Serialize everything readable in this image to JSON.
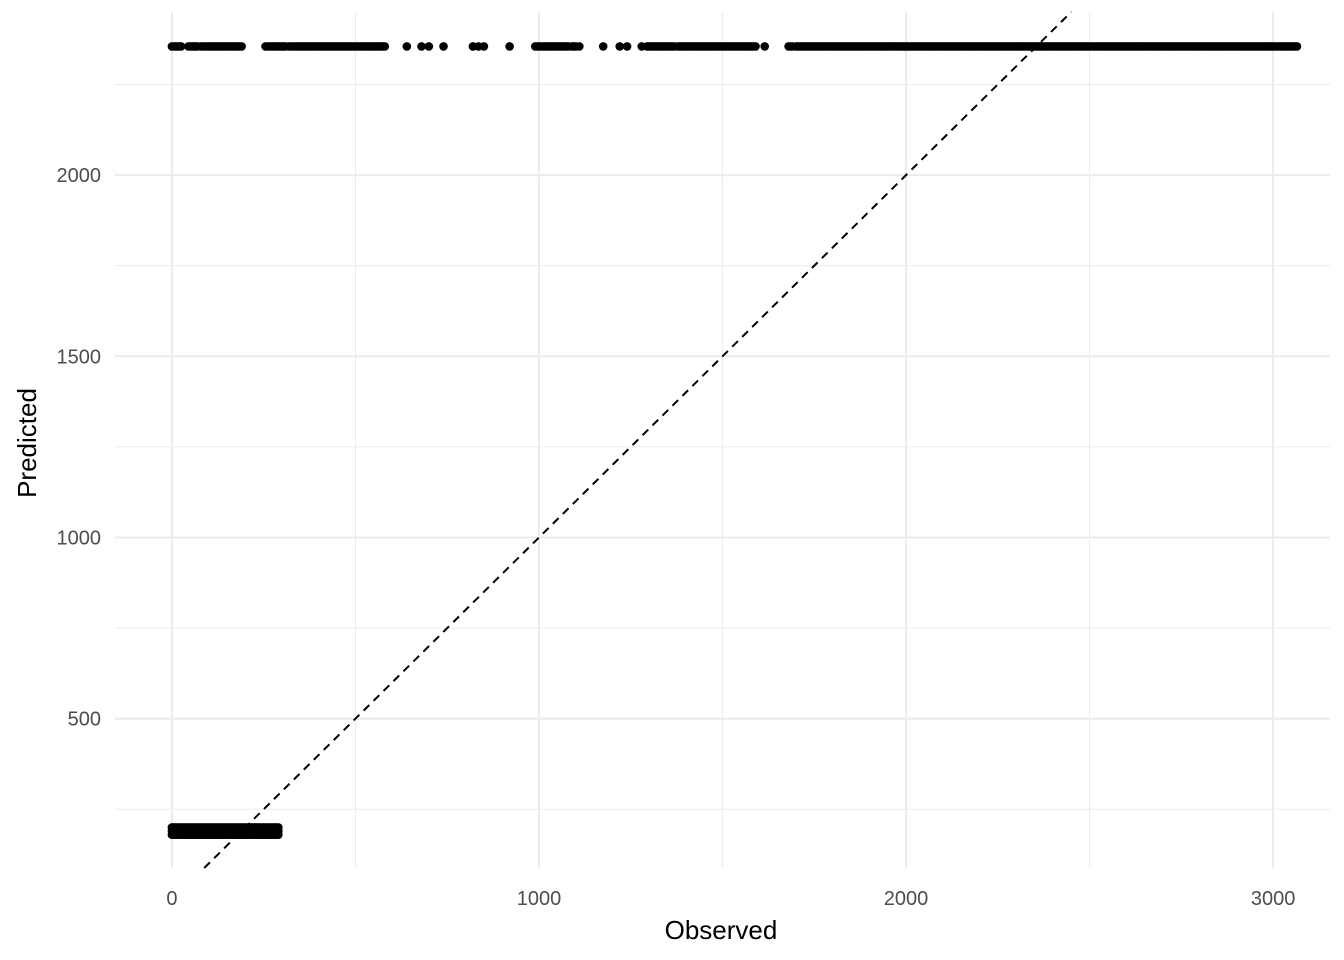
{
  "chart_data": {
    "type": "scatter",
    "title": "",
    "xlabel": "Observed",
    "ylabel": "Predicted",
    "xlim": [
      -155,
      3155
    ],
    "ylim": [
      88,
      2450
    ],
    "x_ticks": [
      0,
      1000,
      2000,
      3000
    ],
    "x_tick_labels": [
      "0",
      "1000",
      "2000",
      "3000"
    ],
    "x_minor_ticks": [
      500,
      1500,
      2500
    ],
    "y_ticks": [
      500,
      1000,
      1500,
      2000
    ],
    "y_tick_labels": [
      "500",
      "1000",
      "1500",
      "2000"
    ],
    "y_minor_ticks": [
      250,
      750,
      1250,
      1750,
      2250
    ],
    "grid": true,
    "reference_line": {
      "style": "dashed",
      "slope": 1,
      "intercept": 0
    },
    "series": [
      {
        "group": "low",
        "predicted": [
          180,
          190,
          200
        ],
        "observed_range": [
          0,
          295
        ],
        "x": [
          0,
          5,
          10,
          15,
          20,
          25,
          30,
          35,
          40,
          45,
          50,
          55,
          60,
          65,
          70,
          75,
          80,
          85,
          90,
          95,
          100,
          105,
          110,
          115,
          120,
          125,
          130,
          135,
          140,
          145,
          150,
          155,
          160,
          165,
          170,
          175,
          180,
          185,
          190,
          195,
          200,
          205,
          210,
          215,
          220,
          225,
          230,
          235,
          240,
          245,
          250,
          255,
          260,
          265,
          270,
          275,
          280,
          285,
          290
        ]
      },
      {
        "group": "high",
        "predicted": 2355,
        "x": [
          0,
          5,
          10,
          15,
          20,
          25,
          45,
          50,
          55,
          60,
          65,
          70,
          80,
          85,
          90,
          95,
          100,
          105,
          110,
          115,
          120,
          125,
          130,
          135,
          140,
          145,
          150,
          155,
          160,
          165,
          170,
          175,
          180,
          185,
          190,
          255,
          260,
          265,
          270,
          275,
          280,
          285,
          290,
          295,
          300,
          305,
          310,
          320,
          325,
          330,
          335,
          340,
          345,
          350,
          355,
          360,
          365,
          370,
          375,
          380,
          385,
          390,
          395,
          400,
          405,
          410,
          415,
          420,
          425,
          430,
          435,
          440,
          445,
          450,
          455,
          460,
          465,
          470,
          475,
          480,
          485,
          490,
          495,
          500,
          505,
          510,
          515,
          520,
          525,
          530,
          535,
          540,
          545,
          550,
          555,
          560,
          565,
          570,
          575,
          580,
          640,
          680,
          700,
          740,
          820,
          835,
          850,
          920,
          990,
          995,
          1000,
          1005,
          1010,
          1015,
          1020,
          1025,
          1030,
          1035,
          1040,
          1045,
          1050,
          1055,
          1060,
          1065,
          1070,
          1075,
          1080,
          1090,
          1095,
          1100,
          1110,
          1175,
          1220,
          1240,
          1280,
          1295,
          1300,
          1305,
          1310,
          1315,
          1320,
          1325,
          1330,
          1335,
          1340,
          1345,
          1350,
          1355,
          1360,
          1365,
          1370,
          1380,
          1385,
          1390,
          1395,
          1400,
          1405,
          1410,
          1415,
          1420,
          1425,
          1430,
          1435,
          1440,
          1445,
          1450,
          1455,
          1460,
          1465,
          1470,
          1475,
          1480,
          1485,
          1490,
          1495,
          1500,
          1505,
          1510,
          1515,
          1520,
          1525,
          1530,
          1535,
          1540,
          1545,
          1550,
          1555,
          1560,
          1565,
          1570,
          1575,
          1580,
          1585,
          1590,
          1615,
          1680,
          1685,
          1690,
          1700,
          1705,
          1710,
          1715,
          1720,
          1725,
          1730,
          1735,
          1740,
          1745,
          1750,
          1755,
          1760,
          1765,
          1770,
          1775,
          1780,
          1785,
          1790,
          1795,
          1800,
          1805,
          1810,
          1815,
          1820,
          1825,
          1830,
          1835,
          1840,
          1845,
          1850,
          1855,
          1860,
          1865,
          1870,
          1875,
          1880,
          1885,
          1890,
          1895,
          1900,
          1905,
          1910,
          1915,
          1920,
          1925,
          1930,
          1935,
          1940,
          1945,
          1950,
          1955,
          1960,
          1965,
          1970,
          1975,
          1980,
          1985,
          1990,
          1995,
          2000,
          2005,
          2010,
          2015,
          2020,
          2025,
          2030,
          2035,
          2040,
          2045,
          2050,
          2055,
          2060,
          2065,
          2070,
          2075,
          2080,
          2085,
          2090,
          2095,
          2100,
          2105,
          2110,
          2115,
          2120,
          2125,
          2130,
          2135,
          2140,
          2145,
          2150,
          2155,
          2160,
          2165,
          2170,
          2175,
          2180,
          2185,
          2190,
          2195,
          2200,
          2205,
          2210,
          2215,
          2220,
          2225,
          2230,
          2235,
          2240,
          2245,
          2250,
          2255,
          2260,
          2265,
          2270,
          2275,
          2280,
          2285,
          2290,
          2295,
          2300,
          2305,
          2310,
          2315,
          2320,
          2325,
          2330,
          2335,
          2340,
          2345,
          2350,
          2355,
          2360,
          2365,
          2370,
          2375,
          2380,
          2385,
          2390,
          2395,
          2400,
          2405,
          2410,
          2415,
          2420,
          2425,
          2430,
          2435,
          2440,
          2445,
          2450,
          2455,
          2460,
          2465,
          2470,
          2475,
          2480,
          2485,
          2490,
          2495,
          2500,
          2505,
          2510,
          2515,
          2520,
          2525,
          2530,
          2535,
          2540,
          2545,
          2550,
          2555,
          2560,
          2565,
          2570,
          2575,
          2580,
          2585,
          2590,
          2595,
          2600,
          2605,
          2610,
          2615,
          2620,
          2625,
          2630,
          2635,
          2640,
          2645,
          2650,
          2655,
          2660,
          2665,
          2670,
          2675,
          2680,
          2685,
          2690,
          2695,
          2700,
          2705,
          2710,
          2715,
          2720,
          2725,
          2730,
          2735,
          2740,
          2745,
          2750,
          2755,
          2760,
          2765,
          2770,
          2775,
          2780,
          2785,
          2790,
          2795,
          2800,
          2805,
          2810,
          2815,
          2820,
          2825,
          2830,
          2835,
          2840,
          2845,
          2850,
          2855,
          2860,
          2865,
          2870,
          2875,
          2880,
          2885,
          2890,
          2895,
          2900,
          2905,
          2910,
          2915,
          2920,
          2925,
          2930,
          2935,
          2940,
          2945,
          2950,
          2955,
          2960,
          2965,
          2970,
          2975,
          2980,
          2985,
          2990,
          2995,
          3000,
          3005,
          3010,
          3015,
          3020,
          3025,
          3030,
          3035,
          3040,
          3045,
          3050,
          3055,
          3060,
          3065
        ]
      }
    ],
    "colors": {
      "points": "#000000",
      "grid": "#ebebeb",
      "tick_text": "#4d4d4d",
      "axis_title": "#000000",
      "reference_line": "#000000"
    }
  }
}
